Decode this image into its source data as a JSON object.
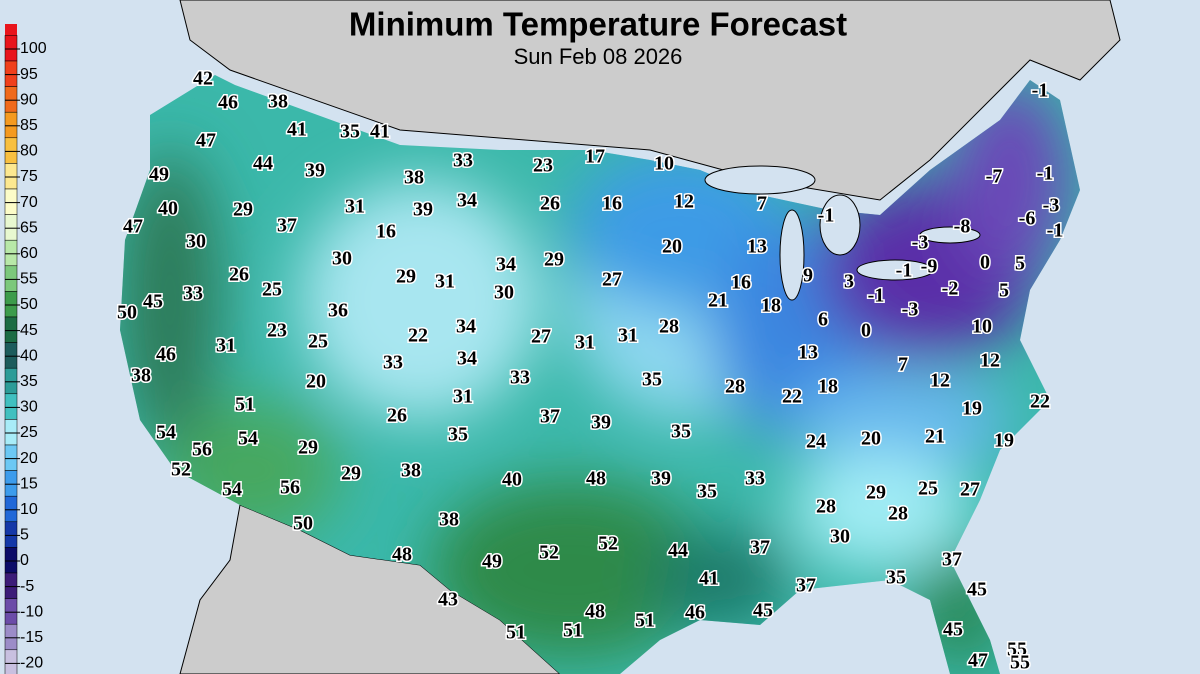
{
  "header": {
    "title": "Minimum Temperature Forecast",
    "subtitle": "Sun Feb 08 2026"
  },
  "legend": {
    "labels": [
      100,
      95,
      90,
      85,
      80,
      75,
      70,
      65,
      60,
      55,
      50,
      45,
      40,
      35,
      30,
      25,
      20,
      15,
      10,
      5,
      0,
      -5,
      -10,
      -15,
      -20
    ]
  },
  "map": {
    "labels": [
      42,
      46,
      38,
      47,
      41,
      35,
      41,
      44,
      39,
      33,
      23,
      17,
      10,
      49,
      38,
      29,
      40,
      31,
      39,
      34,
      26,
      16,
      12,
      7,
      47,
      37,
      16,
      -1,
      -7,
      -1,
      -1,
      -8,
      -6,
      -3,
      -1,
      30,
      30,
      29,
      31,
      34,
      29,
      20,
      13,
      26,
      25,
      33,
      27,
      16,
      9,
      3,
      -3,
      -9,
      -1,
      0,
      5,
      30,
      21,
      18,
      -1,
      -2,
      -3,
      5,
      50,
      45,
      36,
      22,
      34,
      27,
      31,
      31,
      28,
      6,
      0,
      10,
      31,
      23,
      25,
      33,
      34,
      13,
      7,
      12,
      46,
      38,
      20,
      33,
      35,
      28,
      18,
      22,
      12,
      22,
      51,
      31,
      26,
      37,
      39,
      19,
      54,
      56,
      54,
      29,
      35,
      35,
      24,
      20,
      21,
      19,
      52,
      29,
      38,
      40,
      48,
      39,
      35,
      33,
      54,
      56,
      28,
      29,
      25,
      27,
      28,
      50,
      38,
      30,
      52,
      52,
      37,
      44,
      48,
      49,
      37,
      41,
      35,
      45,
      37,
      43,
      48,
      51,
      46,
      45,
      51,
      51,
      45,
      55,
      47,
      55
    ]
  }
}
